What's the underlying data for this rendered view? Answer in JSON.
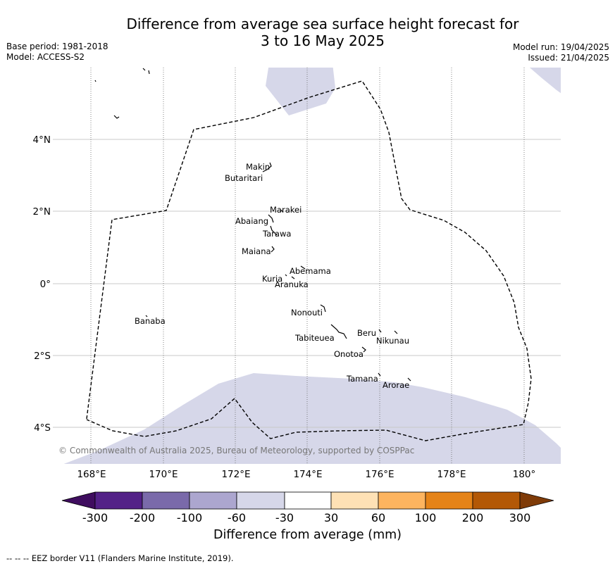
{
  "title": {
    "line1": "Difference from average sea surface height forecast for",
    "line2": "3 to 16 May 2025"
  },
  "meta": {
    "base_period": "Base period: 1981-2018",
    "model": "Model: ACCESS-S2",
    "model_run": "Model run: 19/04/2025",
    "issued": "Issued: 21/04/2025"
  },
  "map": {
    "lat_labels": [
      "4°N",
      "2°N",
      "0°",
      "2°S",
      "4°S"
    ],
    "lat_values": [
      4,
      2,
      0,
      -2,
      -4
    ],
    "lon_labels": [
      "168°E",
      "170°E",
      "172°E",
      "174°E",
      "176°E",
      "178°E",
      "180°"
    ],
    "lon_values": [
      168,
      170,
      172,
      174,
      176,
      178,
      180
    ],
    "islands": [
      "Makin",
      "Butaritari",
      "Marakei",
      "Abaiang",
      "Tarawa",
      "Maiana",
      "Abemama",
      "Kuria",
      "Aranuka",
      "Nonouti",
      "Banaba",
      "Beru",
      "Nikunau",
      "Tabiteuea",
      "Onotoa",
      "Tamana",
      "Arorae"
    ],
    "copyright": "© Commonwealth of Australia 2025, Bureau of Meteorology, supported by COSPPac",
    "shaded_category": "-60 to -30",
    "shaded_color": "#d6d7e9"
  },
  "colorbar": {
    "title": "Difference from average (mm)",
    "tick_labels": [
      "-300",
      "-200",
      "-100",
      "-60",
      "-30",
      "30",
      "60",
      "100",
      "200",
      "300"
    ],
    "colors": [
      "#3f0d5f",
      "#532187",
      "#7a6aaa",
      "#aca6cf",
      "#d6d7e9",
      "#ffffff",
      "#fee1b5",
      "#fdb45f",
      "#e58318",
      "#b35806",
      "#7f3b08"
    ]
  },
  "footnote": "--  --  -- EEZ border V11 (Flanders Marine Institute, 2019)."
}
